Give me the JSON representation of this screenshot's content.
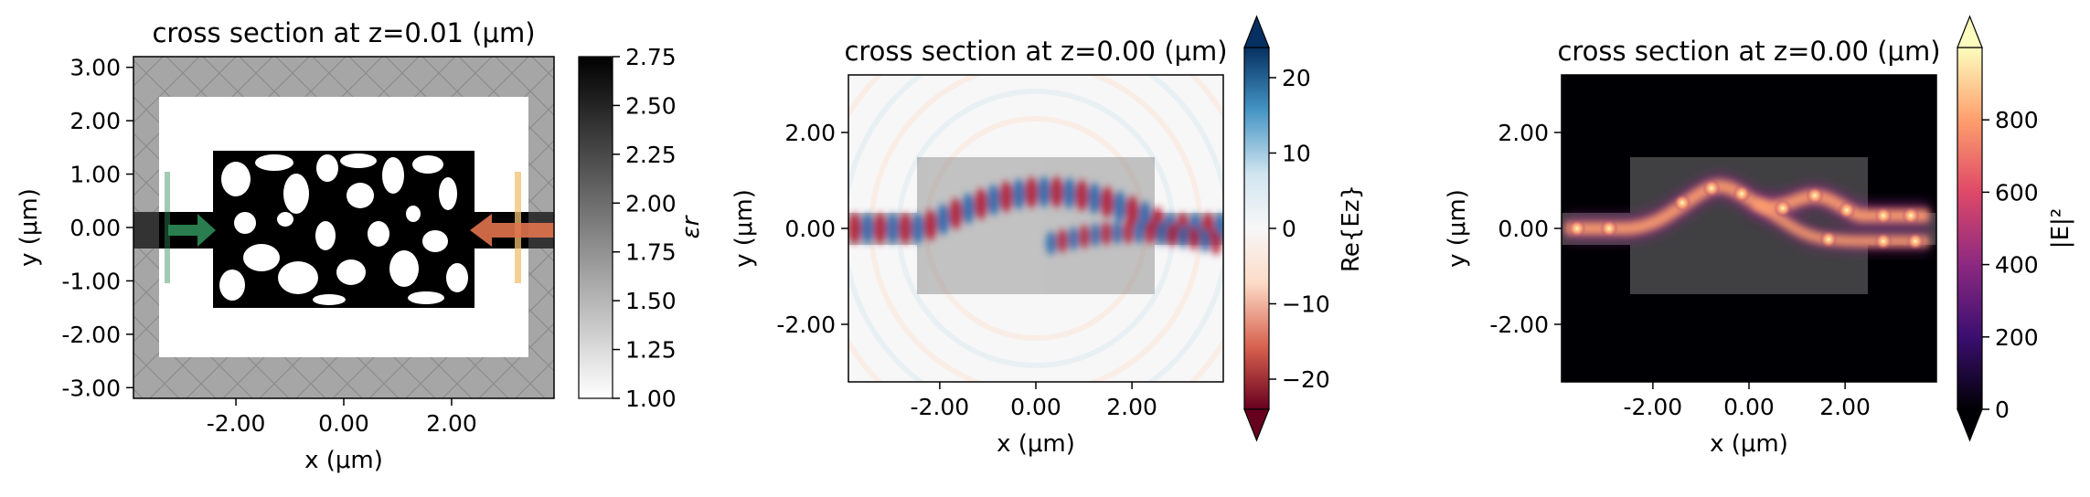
{
  "chart_data": [
    {
      "type": "heatmap",
      "title": "cross section at z=0.01 (μm)",
      "xlabel": "x (μm)",
      "ylabel": "y (μm)",
      "xlim": [
        -3.9,
        3.9
      ],
      "ylim": [
        -3.2,
        3.2
      ],
      "xticks": [
        -2.0,
        0.0,
        2.0
      ],
      "xtick_labels": [
        "-2.00",
        "0.00",
        "2.00"
      ],
      "yticks": [
        3.0,
        2.0,
        1.0,
        0.0,
        -1.0,
        -2.0,
        -3.0
      ],
      "ytick_labels": [
        "3.00",
        "2.00",
        "1.00",
        "0.00",
        "-1.00",
        "-2.00",
        "-3.00"
      ],
      "colorbar": {
        "label": "εr",
        "range": [
          1.0,
          2.75
        ],
        "ticks": [
          "2.75",
          "2.50",
          "2.25",
          "2.00",
          "1.75",
          "1.50",
          "1.25",
          "1.00"
        ],
        "colors": [
          "#ffffff",
          "#000000"
        ]
      },
      "design_region": {
        "x": [
          -2.4,
          2.4
        ],
        "y": [
          -1.55,
          1.55
        ]
      },
      "waveguide": {
        "y": [
          -0.35,
          0.35
        ]
      },
      "pml_color": "#a6a6a6",
      "source_marker": {
        "x": -3.3,
        "color": "#2e8b57"
      },
      "monitor_marker": {
        "x": 3.3,
        "color": "#f0c070"
      }
    },
    {
      "type": "heatmap",
      "title": "cross section at z=0.00 (μm)",
      "xlabel": "x (μm)",
      "ylabel": "y (μm)",
      "xlim": [
        -3.9,
        3.9
      ],
      "ylim": [
        -3.2,
        3.2
      ],
      "xticks": [
        -2.0,
        0.0,
        2.0
      ],
      "xtick_labels": [
        "-2.00",
        "0.00",
        "2.00"
      ],
      "yticks": [
        2.0,
        0.0,
        -2.0
      ],
      "ytick_labels": [
        "2.00",
        "0.00",
        "-2.00"
      ],
      "colorbar": {
        "label": "Re{Ez}",
        "range": [
          -24,
          24
        ],
        "ticks": [
          "20",
          "10",
          "0",
          "−10",
          "−20"
        ],
        "extend": "both",
        "colors": [
          "#67001f",
          "#d6604d",
          "#fddbc7",
          "#f7f7f7",
          "#d1e5f0",
          "#4393c3",
          "#053061"
        ]
      }
    },
    {
      "type": "heatmap",
      "title": "cross section at z=0.00 (μm)",
      "xlabel": "x (μm)",
      "ylabel": "y (μm)",
      "xlim": [
        -3.9,
        3.9
      ],
      "ylim": [
        -3.2,
        3.2
      ],
      "xticks": [
        -2.0,
        0.0,
        2.0
      ],
      "xtick_labels": [
        "-2.00",
        "0.00",
        "2.00"
      ],
      "yticks": [
        2.0,
        0.0,
        -2.0
      ],
      "ytick_labels": [
        "2.00",
        "0.00",
        "-2.00"
      ],
      "colorbar": {
        "label": "|E|²",
        "range": [
          0,
          1000
        ],
        "ticks": [
          "800",
          "600",
          "400",
          "200",
          "0"
        ],
        "extend": "both",
        "colors": [
          "#000004",
          "#3b0f70",
          "#8c2981",
          "#de4968",
          "#fe9f6d",
          "#fcfdbf"
        ]
      }
    }
  ]
}
